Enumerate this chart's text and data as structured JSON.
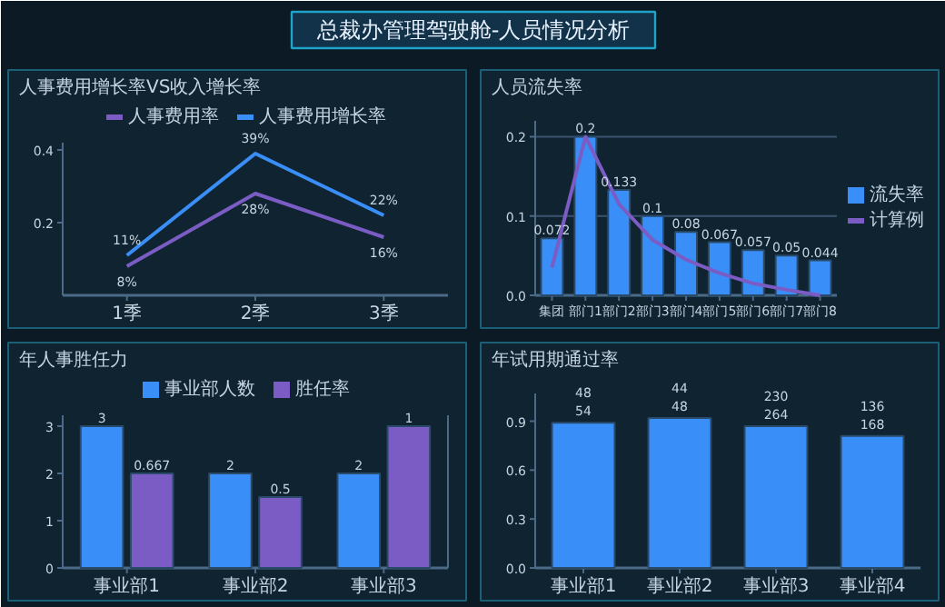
{
  "chart_data": [
    {
      "type": "other",
      "title": "总裁办管理驾驶舱-人员情况分析"
    },
    {
      "type": "line",
      "title": "人事费用增长率VS收入增长率",
      "categories": [
        "1季",
        "2季",
        "3季"
      ],
      "ylim": [
        0,
        0.42
      ],
      "yticks": [
        0.2,
        0.4
      ],
      "legend": "top",
      "series": [
        {
          "name": "人事费用率",
          "color": "#7b5cc4",
          "values": [
            0.08,
            0.28,
            0.16
          ],
          "value_labels": [
            "8%",
            "28%",
            "16%"
          ]
        },
        {
          "name": "人事费用增长率",
          "color": "#3a8ef7",
          "values": [
            0.11,
            0.39,
            0.22
          ],
          "value_labels": [
            "11%",
            "39%",
            "22%"
          ]
        }
      ]
    },
    {
      "type": "bar",
      "title": "人员流失率",
      "categories": [
        "集团",
        "部门1",
        "部门2",
        "部门3",
        "部门4",
        "部门5",
        "部门6",
        "部门7",
        "部门8"
      ],
      "ylim": [
        0,
        0.22
      ],
      "yticks": [
        {
          "value": 0,
          "label": "0.0"
        },
        0.1,
        0.2
      ],
      "grid": "y",
      "legend": "right",
      "series": [
        {
          "name": "流失率",
          "color": "#3a8ef7",
          "values": [
            0.072,
            0.2,
            0.133,
            0.1,
            0.08,
            0.067,
            0.057,
            0.05,
            0.044
          ],
          "value_labels": [
            "0.072",
            "0.2",
            "0.133",
            "0.1",
            "0.08",
            "0.067",
            "0.057",
            "0.05",
            "0.044"
          ]
        },
        {
          "name": "计算例",
          "type": "line",
          "color": "#7b5cc4",
          "values": [
            0.035,
            0.2,
            0.115,
            0.07,
            0.045,
            0.028,
            0.015,
            0.007,
            0.0
          ]
        }
      ]
    },
    {
      "type": "bar",
      "title": "年人事胜任力",
      "categories": [
        "事业部1",
        "事业部2",
        "事业部3"
      ],
      "ylim": [
        0,
        3.23
      ],
      "yticks": [
        0,
        1,
        2,
        3
      ],
      "y2lim": [
        0,
        1.077
      ],
      "legend": "top",
      "data_labels": true,
      "series": [
        {
          "name": "事业部人数",
          "color": "#3a8ef7",
          "values": [
            3,
            2,
            2
          ]
        },
        {
          "name": "胜任率",
          "color": "#7b5cc4",
          "values": [
            0.667,
            0.5,
            1
          ],
          "axis": "y2"
        }
      ]
    },
    {
      "type": "bar",
      "title": "年试用期通过率",
      "categories": [
        "事业部1",
        "事业部2",
        "事业部3",
        "事业部4"
      ],
      "ylim": [
        0,
        1.07
      ],
      "yticks": [
        {
          "value": 0,
          "label": "0.0"
        },
        0.3,
        0.6,
        0.9
      ],
      "series": [
        {
          "color": "#3a8ef7",
          "values": [
            0.89,
            0.92,
            0.87,
            0.81
          ]
        }
      ],
      "annotations": [
        {
          "text": "48\n54",
          "x": "事业部1",
          "y": 0.89
        },
        {
          "text": "44\n48",
          "x": "事业部2",
          "y": 0.92
        },
        {
          "text": "230\n264",
          "x": "事业部3",
          "y": 0.87
        },
        {
          "text": "136\n168",
          "x": "事业部4",
          "y": 0.81
        }
      ]
    }
  ]
}
